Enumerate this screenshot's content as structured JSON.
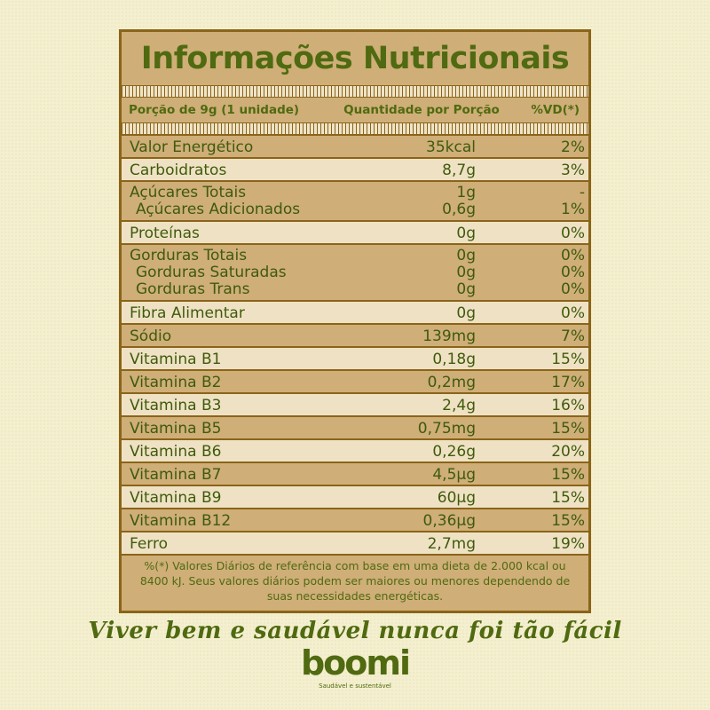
{
  "title": "Informações Nutricionais",
  "header": {
    "portion": "Porção de 9g (1 unidade)",
    "quantity": "Quantidade por Porção",
    "vd": "%VD(*)"
  },
  "rows": [
    {
      "lines": [
        {
          "label": "Valor Energético",
          "amount": "35kcal",
          "vd": "2%"
        }
      ]
    },
    {
      "lines": [
        {
          "label": "Carboidratos",
          "amount": "8,7g",
          "vd": "3%"
        }
      ]
    },
    {
      "lines": [
        {
          "label": "Açúcares Totais",
          "amount": "1g",
          "vd": "-"
        },
        {
          "label": "Açúcares Adicionados",
          "amount": "0,6g",
          "vd": "1%"
        }
      ]
    },
    {
      "lines": [
        {
          "label": "Proteínas",
          "amount": "0g",
          "vd": "0%"
        }
      ]
    },
    {
      "lines": [
        {
          "label": "Gorduras Totais",
          "amount": "0g",
          "vd": "0%"
        },
        {
          "label": "Gorduras Saturadas",
          "amount": "0g",
          "vd": "0%"
        },
        {
          "label": "Gorduras Trans",
          "amount": "0g",
          "vd": "0%"
        }
      ]
    },
    {
      "lines": [
        {
          "label": "Fibra Alimentar",
          "amount": "0g",
          "vd": "0%"
        }
      ]
    },
    {
      "lines": [
        {
          "label": "Sódio",
          "amount": "139mg",
          "vd": "7%"
        }
      ]
    },
    {
      "lines": [
        {
          "label": "Vitamina B1",
          "amount": "0,18g",
          "vd": "15%"
        }
      ]
    },
    {
      "lines": [
        {
          "label": "Vitamina B2",
          "amount": "0,2mg",
          "vd": "17%"
        }
      ]
    },
    {
      "lines": [
        {
          "label": "Vitamina B3",
          "amount": "2,4g",
          "vd": "16%"
        }
      ]
    },
    {
      "lines": [
        {
          "label": "Vitamina B5",
          "amount": "0,75mg",
          "vd": "15%"
        }
      ]
    },
    {
      "lines": [
        {
          "label": "Vitamina B6",
          "amount": "0,26g",
          "vd": "20%"
        }
      ]
    },
    {
      "lines": [
        {
          "label": "Vitamina B7",
          "amount": "4,5µg",
          "vd": "15%"
        }
      ]
    },
    {
      "lines": [
        {
          "label": "Vitamina B9",
          "amount": "60µg",
          "vd": "15%"
        }
      ]
    },
    {
      "lines": [
        {
          "label": "Vitamina B12",
          "amount": "0,36µg",
          "vd": "15%"
        }
      ]
    },
    {
      "lines": [
        {
          "label": "Ferro",
          "amount": "2,7mg",
          "vd": "19%"
        }
      ]
    }
  ],
  "footnote": "%(*) Valores Diários de referência com base em uma dieta de 2.000 kcal ou 8400 kJ. Seus valores diários podem ser maiores ou menores dependendo de suas necessidades energéticas.",
  "slogan": "Viver bem e saudável nunca foi tão fácil",
  "brand": "boomi",
  "tagline": "Saudável e sustentável",
  "colors": {
    "text_green": "#4f6a10",
    "border_brown": "#8a6418",
    "row_dark": "#cfae78",
    "row_light": "#efe2c4",
    "background": "#f4efcf"
  }
}
